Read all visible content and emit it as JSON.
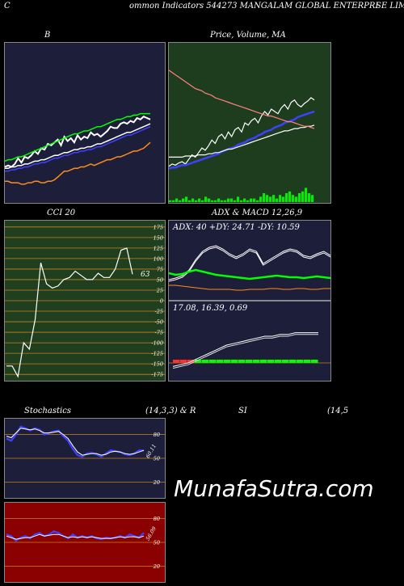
{
  "header": {
    "left_letter": "C",
    "title": "ommon  Indicators 544273 MANGALAM GLOBAL  ENTERPRI",
    "right_text": "SE LIM"
  },
  "colors": {
    "bg": "#000000",
    "navy_panel": "#1c1e3a",
    "green_panel": "#1e3d1e",
    "red_panel": "#8b0000",
    "cci_panel": "#1f3f1f",
    "grid_orange": "#c8821e"
  },
  "watermark": "MunafaSutra.com",
  "chart_data": [
    {
      "type": "line",
      "id": "bollinger",
      "title": "B",
      "series": [
        {
          "role": "price",
          "color": "#ffffff",
          "values": [
            25,
            26,
            25,
            27,
            31,
            28,
            32,
            31,
            33,
            36,
            34,
            38,
            37,
            41,
            40,
            42,
            44,
            40,
            46,
            43,
            45,
            42,
            47,
            44,
            46,
            45,
            49,
            47,
            48,
            46,
            48,
            50,
            53,
            52,
            52,
            55,
            56,
            55,
            57,
            56,
            59,
            58,
            60,
            59,
            58
          ]
        },
        {
          "role": "upper",
          "color": "#00ff00",
          "values": [
            29,
            30,
            30,
            31,
            32,
            32,
            33,
            34,
            35,
            36,
            37,
            38,
            39,
            40,
            41,
            42,
            43,
            44,
            45,
            46,
            47,
            48,
            48,
            49,
            50,
            50,
            51,
            52,
            53,
            53,
            54,
            55,
            56,
            57,
            58,
            58,
            59,
            60,
            60,
            61,
            61,
            62,
            62,
            62,
            62
          ]
        },
        {
          "role": "mid",
          "color": "#4040ff",
          "values": [
            22,
            22,
            23,
            23,
            24,
            24,
            25,
            25,
            26,
            27,
            27,
            28,
            28,
            29,
            30,
            31,
            31,
            32,
            33,
            33,
            34,
            35,
            35,
            36,
            36,
            37,
            37,
            38,
            39,
            39,
            40,
            41,
            42,
            43,
            44,
            45,
            46,
            47,
            47,
            48,
            49,
            50,
            51,
            52,
            53
          ]
        },
        {
          "role": "mid2",
          "color": "#ffffff",
          "values": [
            24,
            24,
            25,
            25,
            26,
            26,
            27,
            27,
            28,
            29,
            29,
            30,
            30,
            31,
            32,
            33,
            33,
            34,
            35,
            35,
            36,
            37,
            37,
            38,
            38,
            39,
            39,
            40,
            41,
            41,
            42,
            43,
            44,
            45,
            46,
            47,
            48,
            49,
            49,
            50,
            51,
            52,
            53,
            54,
            55
          ]
        },
        {
          "role": "lower",
          "color": "#ff8c1a",
          "values": [
            15,
            15,
            14,
            14,
            14,
            13,
            13,
            14,
            14,
            15,
            15,
            14,
            14,
            15,
            15,
            16,
            18,
            20,
            22,
            22,
            23,
            24,
            24,
            25,
            25,
            26,
            27,
            26,
            27,
            28,
            29,
            30,
            30,
            31,
            32,
            32,
            33,
            34,
            35,
            36,
            36,
            37,
            38,
            40,
            42
          ]
        }
      ],
      "ylim": [
        0,
        100
      ]
    },
    {
      "type": "line",
      "id": "price_ma",
      "title": "Price,  Volume, MA",
      "series": [
        {
          "role": "price",
          "color": "#ffffff",
          "values": [
            32,
            34,
            33,
            35,
            36,
            34,
            38,
            42,
            40,
            44,
            48,
            46,
            50,
            55,
            52,
            58,
            60,
            56,
            62,
            58,
            64,
            66,
            62,
            70,
            68,
            72,
            74,
            70,
            76,
            80,
            77,
            82,
            80,
            78,
            83,
            86,
            82,
            88,
            90,
            86,
            84,
            87,
            89,
            92,
            90
          ]
        },
        {
          "role": "ma_fast",
          "color": "#4040ff",
          "values": [
            30,
            31,
            31,
            32,
            33,
            33,
            34,
            35,
            36,
            37,
            38,
            39,
            40,
            41,
            42,
            43,
            45,
            46,
            47,
            48,
            49,
            51,
            52,
            53,
            55,
            56,
            57,
            59,
            60,
            62,
            63,
            64,
            66,
            67,
            68,
            70,
            71,
            72,
            73,
            75,
            76,
            77,
            78,
            79,
            80
          ]
        },
        {
          "role": "ma_slow_white",
          "color": "#ffffff",
          "values": [
            40,
            40,
            40,
            40,
            40,
            41,
            41,
            41,
            41,
            42,
            42,
            42,
            43,
            43,
            44,
            44,
            45,
            46,
            47,
            47,
            48,
            49,
            50,
            51,
            52,
            53,
            54,
            55,
            56,
            57,
            58,
            59,
            60,
            61,
            62,
            63,
            63,
            64,
            65,
            65,
            66,
            66,
            67,
            67,
            68
          ]
        },
        {
          "role": "ma_long_pink",
          "color": "#ff8080",
          "values": [
            116,
            114,
            112,
            110,
            108,
            106,
            104,
            102,
            100,
            99,
            98,
            96,
            95,
            94,
            92,
            91,
            90,
            89,
            88,
            87,
            86,
            85,
            84,
            83,
            82,
            81,
            80,
            79,
            78,
            77,
            76,
            76,
            75,
            74,
            73,
            72,
            71,
            71,
            70,
            69,
            68,
            67,
            67,
            66,
            65
          ]
        }
      ],
      "volume": [
        1,
        1,
        2,
        1,
        2,
        3,
        1,
        2,
        1,
        2,
        1,
        3,
        2,
        1,
        1,
        2,
        1,
        1,
        2,
        2,
        1,
        3,
        1,
        2,
        1,
        2,
        2,
        1,
        3,
        5,
        4,
        3,
        4,
        2,
        4,
        3,
        5,
        6,
        4,
        3,
        5,
        6,
        8,
        5,
        4
      ],
      "ylim": [
        0,
        140
      ]
    },
    {
      "type": "line",
      "id": "cci",
      "title": "CCI 20",
      "current_label": "63",
      "yticks": [
        "175",
        "150",
        "125",
        "100",
        "75",
        "50",
        "25",
        "0",
        "-25",
        "-50",
        "-75",
        "-100",
        "-125",
        "-150",
        "-175"
      ],
      "tick_values": [
        175,
        150,
        125,
        100,
        75,
        50,
        25,
        0,
        -25,
        -50,
        -75,
        -100,
        -125,
        -150,
        -175
      ],
      "series": [
        {
          "role": "cci",
          "color": "#ffffff",
          "values": [
            -155,
            -155,
            -180,
            -100,
            -115,
            -45,
            90,
            40,
            30,
            35,
            50,
            55,
            70,
            60,
            50,
            50,
            65,
            55,
            55,
            75,
            120,
            125,
            63
          ]
        }
      ],
      "ylim": [
        -190,
        190
      ]
    },
    {
      "type": "line",
      "id": "adx",
      "title": "ADX  & MACD 12,26,9",
      "readout": "ADX: 40  +DY: 24.71 -DY: 10.59",
      "series": [
        {
          "role": "adx_white_a",
          "color": "#ffffff",
          "values": [
            20,
            22,
            25,
            32,
            45,
            55,
            60,
            62,
            58,
            52,
            48,
            52,
            58,
            55,
            40,
            45,
            50,
            55,
            58,
            56,
            50,
            48,
            52,
            55,
            50
          ]
        },
        {
          "role": "adx_white_b",
          "color": "#ffffff",
          "values": [
            22,
            24,
            27,
            34,
            47,
            57,
            62,
            64,
            60,
            54,
            50,
            54,
            60,
            57,
            42,
            47,
            52,
            57,
            60,
            58,
            52,
            50,
            54,
            57,
            52
          ]
        },
        {
          "role": "plus_di",
          "color": "#00ff00",
          "values": [
            30,
            28,
            29,
            32,
            34,
            32,
            30,
            28,
            27,
            26,
            25,
            24,
            23,
            24,
            25,
            26,
            27,
            26,
            25,
            25,
            24,
            25,
            26,
            25,
            24
          ]
        },
        {
          "role": "minus_di",
          "color": "#ff8c1a",
          "values": [
            15,
            15,
            14,
            13,
            12,
            11,
            10,
            10,
            10,
            10,
            9,
            9,
            10,
            10,
            10,
            11,
            11,
            10,
            10,
            11,
            11,
            10,
            10,
            11,
            11
          ]
        }
      ],
      "ylim": [
        0,
        80
      ]
    },
    {
      "type": "bar",
      "id": "macd",
      "readout": "17.08,  16.39,  0.69",
      "series": [
        {
          "role": "macd",
          "color": "#ffffff",
          "values": [
            -2,
            -1,
            0,
            2,
            4,
            6,
            8,
            10,
            11,
            12,
            13,
            14,
            15,
            15,
            16,
            16,
            17,
            17,
            17,
            17
          ]
        },
        {
          "role": "signal",
          "color": "#ffffff",
          "values": [
            -3,
            -2,
            -1,
            1,
            3,
            5,
            7,
            9,
            10,
            11,
            12,
            13,
            14,
            14,
            15,
            15,
            16,
            16,
            16,
            16
          ]
        },
        {
          "role": "hist",
          "color": "#00ff00",
          "values": [
            1,
            1,
            1,
            1,
            1,
            1,
            1,
            1,
            1,
            1,
            1,
            1,
            1,
            1,
            1,
            1,
            1,
            1,
            1,
            1
          ]
        }
      ],
      "ylim": [
        -10,
        30
      ]
    },
    {
      "type": "line",
      "id": "stochastics",
      "title": "Stochastics",
      "params": "(14,3,3) & R",
      "current_label": "60.11",
      "yticks": [
        "80",
        "50",
        "20"
      ],
      "tick_values": [
        80,
        50,
        20
      ],
      "series": [
        {
          "role": "k",
          "color": "#4040ff",
          "values": [
            75,
            72,
            80,
            90,
            88,
            85,
            88,
            86,
            80,
            82,
            84,
            85,
            78,
            72,
            62,
            54,
            52,
            56,
            57,
            55,
            52,
            56,
            60,
            59,
            58,
            55,
            54,
            56,
            60,
            60
          ]
        },
        {
          "role": "d",
          "color": "#ffffff",
          "values": [
            78,
            76,
            82,
            88,
            87,
            86,
            87,
            85,
            82,
            82,
            83,
            84,
            80,
            75,
            66,
            58,
            54,
            55,
            56,
            56,
            54,
            55,
            58,
            59,
            58,
            56,
            55,
            56,
            58,
            60
          ]
        }
      ],
      "ylim": [
        0,
        100
      ]
    },
    {
      "type": "line",
      "id": "rsi_stoch2",
      "title": "SI",
      "params": "(14,5",
      "current_label": "56.09",
      "yticks": [
        "80",
        "50",
        "20"
      ],
      "tick_values": [
        80,
        50,
        20
      ],
      "series": [
        {
          "role": "k",
          "color": "#4040ff",
          "values": [
            60,
            58,
            52,
            56,
            58,
            55,
            60,
            62,
            58,
            60,
            64,
            62,
            58,
            55,
            60,
            56,
            58,
            56,
            58,
            55,
            54,
            56,
            55,
            56,
            58,
            56,
            60,
            58,
            56,
            62
          ]
        },
        {
          "role": "d",
          "color": "#ffffff",
          "values": [
            58,
            56,
            54,
            55,
            56,
            56,
            58,
            60,
            58,
            59,
            60,
            60,
            58,
            56,
            57,
            56,
            57,
            56,
            57,
            56,
            55,
            55,
            55,
            56,
            57,
            56,
            57,
            57,
            56,
            58
          ]
        }
      ],
      "ylim": [
        0,
        100
      ]
    }
  ]
}
